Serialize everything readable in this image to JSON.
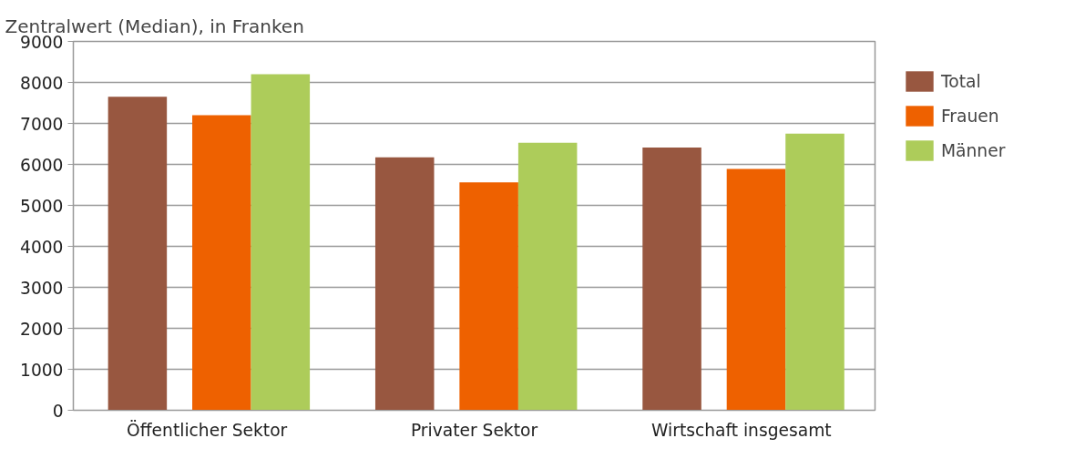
{
  "chart_data": {
    "type": "bar",
    "ylabel": "Zentralwert (Median), in Franken",
    "categories": [
      "Öffentlicher Sektor",
      "Privater Sektor",
      "Wirtschaft insgesamt"
    ],
    "series": [
      {
        "name": "Total",
        "color": "#985740",
        "values": [
          7650,
          6170,
          6410
        ]
      },
      {
        "name": "Frauen",
        "color": "#ee6100",
        "values": [
          7200,
          5560,
          5890
        ]
      },
      {
        "name": "Männer",
        "color": "#adcc5a",
        "values": [
          8200,
          6530,
          6750
        ]
      }
    ],
    "ylim": [
      0,
      9000
    ],
    "yticks": [
      0,
      1000,
      2000,
      3000,
      4000,
      5000,
      6000,
      7000,
      8000,
      9000
    ],
    "grid": "y",
    "legend": "top right"
  }
}
